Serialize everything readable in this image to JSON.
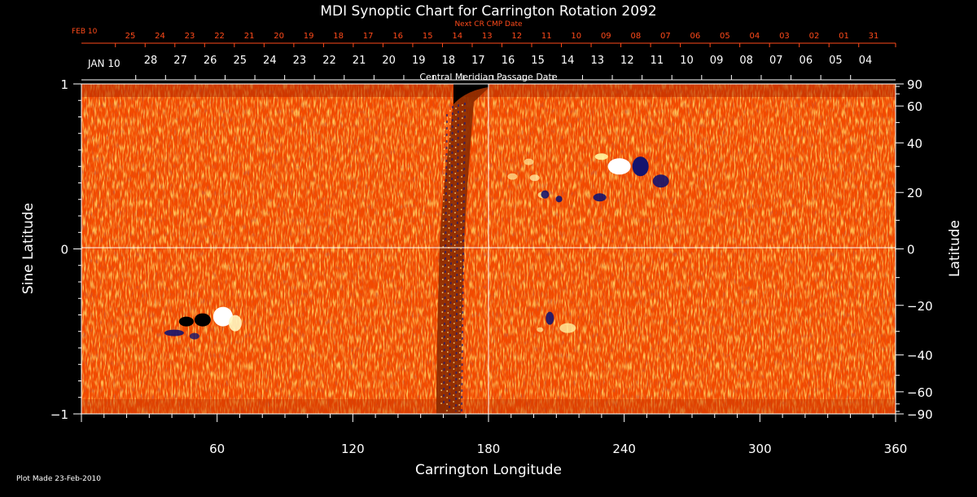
{
  "chart_data": {
    "type": "heatmap",
    "title": "MDI Synoptic Chart for Carrington Rotation 2092",
    "xlabel": "Carrington Longitude",
    "ylabel_left": "Sine Latitude",
    "ylabel_right": "Latitude",
    "x_range": [
      0,
      360
    ],
    "y_range": [
      -1,
      1
    ],
    "x_ticks": [
      60,
      120,
      180,
      240,
      300,
      360
    ],
    "y_ticks_left": [
      -1,
      0,
      1
    ],
    "y_ticks_right": [
      -90,
      -60,
      -40,
      -20,
      0,
      20,
      40,
      60,
      90
    ],
    "grid": "crosshair at longitude 180 and sine latitude 0",
    "top_axis_next": {
      "title": "Next CR CMP Date",
      "month_label": "FEB 10",
      "days": [
        "25",
        "24",
        "23",
        "22",
        "21",
        "20",
        "19",
        "18",
        "17",
        "16",
        "15",
        "14",
        "13",
        "12",
        "11",
        "10",
        "09",
        "08",
        "07",
        "06",
        "05",
        "04",
        "03",
        "02",
        "01",
        "31"
      ]
    },
    "top_axis_current": {
      "title": "Central Meridian Passage Date",
      "month_label": "JAN 10",
      "days": [
        "28",
        "27",
        "26",
        "25",
        "24",
        "23",
        "22",
        "21",
        "20",
        "19",
        "18",
        "17",
        "16",
        "15",
        "14",
        "13",
        "12",
        "11",
        "10",
        "09",
        "08",
        "07",
        "06",
        "05",
        "04"
      ]
    },
    "colors": {
      "background_field": "#ff5a00",
      "positive_polarity": "#ffffff",
      "negative_polarity": "#14146e",
      "top_axis_next": "#ff4a1a",
      "axes": "#ffffff"
    },
    "regions": [
      {
        "name": "north active region",
        "longitude": 240,
        "sine_latitude": 0.5,
        "polarity": "bipolar"
      },
      {
        "name": "south active region",
        "longitude": 50,
        "sine_latitude": -0.43,
        "polarity": "bipolar"
      },
      {
        "name": "minor southern plage",
        "longitude": 210,
        "sine_latitude": -0.46,
        "polarity": "bipolar"
      },
      {
        "name": "minor northern plage",
        "longitude": 205,
        "sine_latitude": 0.33,
        "polarity": "bipolar"
      }
    ],
    "data_gap_longitude": 167
  },
  "footer": {
    "plot_made": "Plot Made 23-Feb-2010"
  }
}
